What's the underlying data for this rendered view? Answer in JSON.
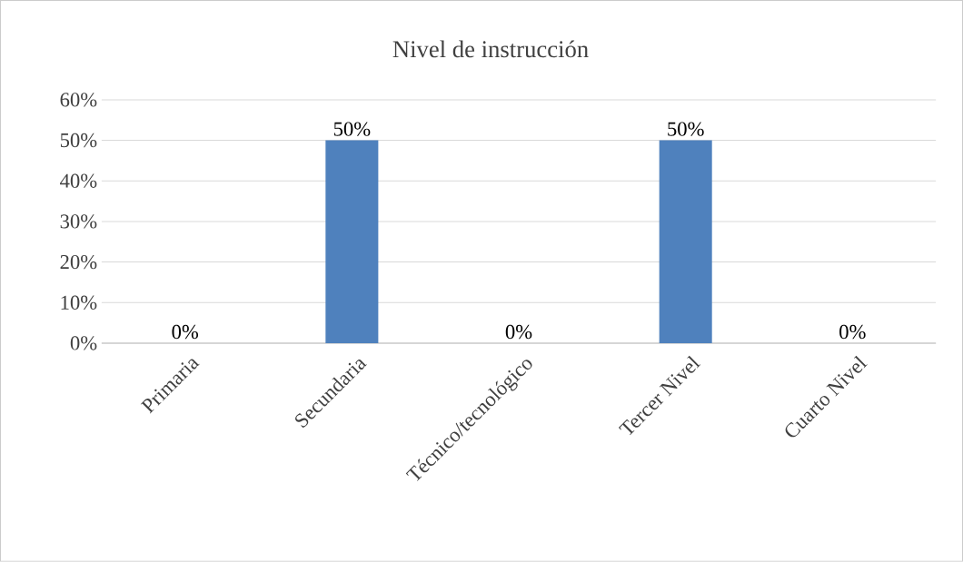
{
  "chart_data": {
    "type": "bar",
    "title": "Nivel de instrucción",
    "categories": [
      "Primaria",
      "Secundaria",
      "Técnico/tecnológico",
      "Tercer Nivel",
      "Cuarto Nivel"
    ],
    "values": [
      0,
      50,
      0,
      50,
      0
    ],
    "value_labels": [
      "0%",
      "50%",
      "0%",
      "50%",
      "0%"
    ],
    "color": "#4f81bd",
    "ylim": [
      0,
      60
    ],
    "yticks": [
      {
        "value": 0,
        "label": "0%"
      },
      {
        "value": 10,
        "label": "10%"
      },
      {
        "value": 20,
        "label": "20%"
      },
      {
        "value": 30,
        "label": "30%"
      },
      {
        "value": 40,
        "label": "40%"
      },
      {
        "value": 50,
        "label": "50%"
      },
      {
        "value": 60,
        "label": "60%"
      }
    ],
    "grid": "y"
  }
}
